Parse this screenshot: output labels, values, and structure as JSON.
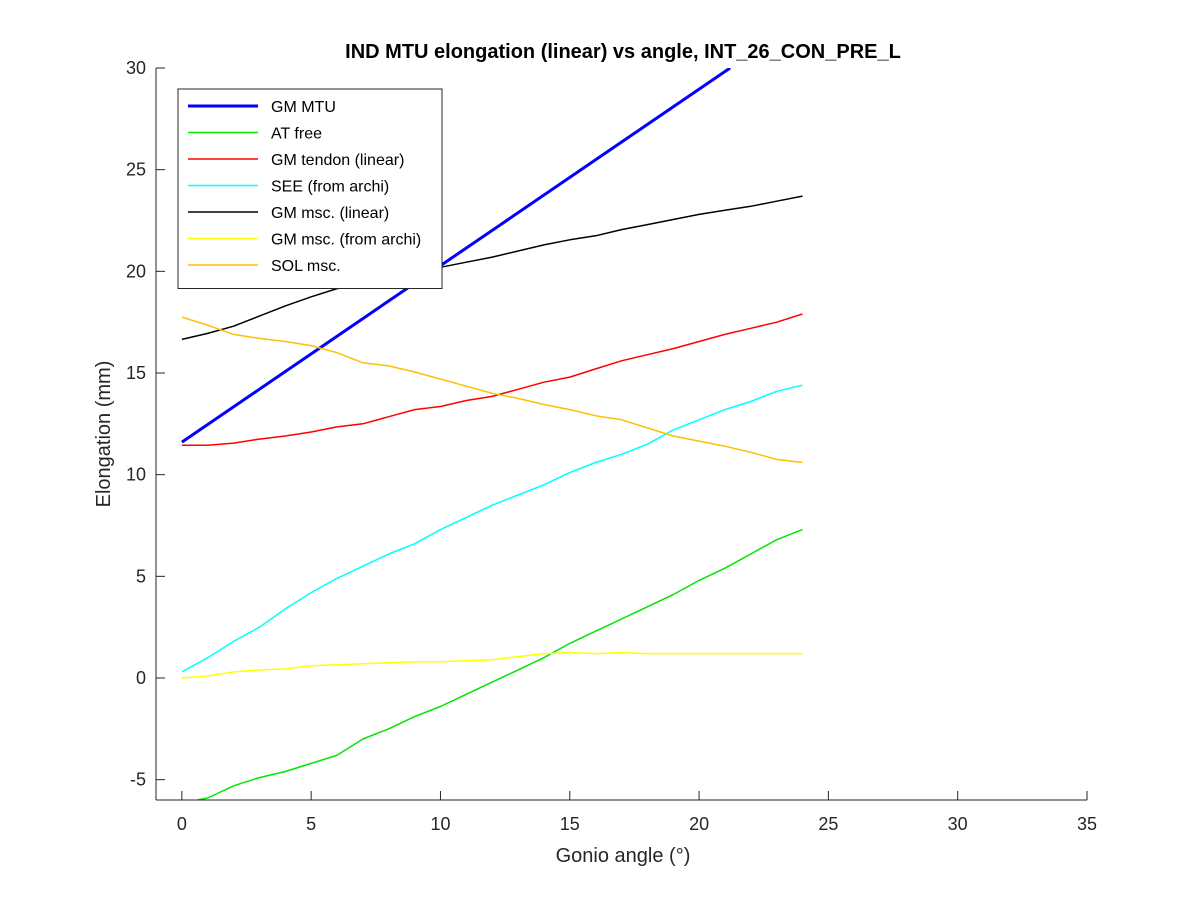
{
  "chart_data": {
    "type": "line",
    "title": "IND MTU elongation (linear) vs angle, INT_26_CON_PRE_L",
    "xlabel": "Gonio angle (°)",
    "ylabel": "Elongation (mm)",
    "xlim": [
      -1,
      35
    ],
    "ylim": [
      -6,
      30
    ],
    "xticks": [
      0,
      5,
      10,
      15,
      20,
      25,
      30,
      35
    ],
    "yticks": [
      -5,
      0,
      5,
      10,
      15,
      20,
      25,
      30
    ],
    "legend_position": "top-left",
    "grid": false,
    "series": [
      {
        "name": "GM MTU",
        "color": "#0000ff",
        "width": 3,
        "points": [
          [
            0,
            11.6
          ],
          [
            21.2,
            30.0
          ]
        ]
      },
      {
        "name": "AT free",
        "color": "#00e600",
        "width": 1.5,
        "points": [
          [
            0.6,
            -6.0
          ],
          [
            1.0,
            -5.9
          ],
          [
            2,
            -5.3
          ],
          [
            3,
            -4.9
          ],
          [
            4,
            -4.6
          ],
          [
            5,
            -4.2
          ],
          [
            6,
            -3.8
          ],
          [
            7,
            -3.0
          ],
          [
            8,
            -2.5
          ],
          [
            9,
            -1.9
          ],
          [
            10,
            -1.4
          ],
          [
            11,
            -0.8
          ],
          [
            12,
            -0.2
          ],
          [
            13,
            0.4
          ],
          [
            14,
            1.0
          ],
          [
            15,
            1.7
          ],
          [
            16,
            2.3
          ],
          [
            17,
            2.9
          ],
          [
            18,
            3.5
          ],
          [
            19,
            4.1
          ],
          [
            20,
            4.8
          ],
          [
            21,
            5.4
          ],
          [
            22,
            6.1
          ],
          [
            23,
            6.8
          ],
          [
            24,
            7.3
          ]
        ]
      },
      {
        "name": "GM tendon (linear)",
        "color": "#ff0000",
        "width": 1.5,
        "points": [
          [
            0,
            11.45
          ],
          [
            1,
            11.45
          ],
          [
            2,
            11.55
          ],
          [
            3,
            11.75
          ],
          [
            4,
            11.9
          ],
          [
            5,
            12.1
          ],
          [
            6,
            12.35
          ],
          [
            7,
            12.5
          ],
          [
            8,
            12.85
          ],
          [
            9,
            13.2
          ],
          [
            10,
            13.35
          ],
          [
            11,
            13.65
          ],
          [
            12,
            13.85
          ],
          [
            13,
            14.2
          ],
          [
            14,
            14.55
          ],
          [
            15,
            14.8
          ],
          [
            16,
            15.2
          ],
          [
            17,
            15.6
          ],
          [
            18,
            15.9
          ],
          [
            19,
            16.2
          ],
          [
            20,
            16.55
          ],
          [
            21,
            16.9
          ],
          [
            22,
            17.2
          ],
          [
            23,
            17.5
          ],
          [
            24,
            17.9
          ]
        ]
      },
      {
        "name": "SEE (from archi)",
        "color": "#00ffff",
        "width": 1.5,
        "points": [
          [
            0,
            0.3
          ],
          [
            1,
            1.0
          ],
          [
            2,
            1.8
          ],
          [
            3,
            2.5
          ],
          [
            4,
            3.4
          ],
          [
            5,
            4.2
          ],
          [
            6,
            4.9
          ],
          [
            7,
            5.5
          ],
          [
            8,
            6.1
          ],
          [
            9,
            6.6
          ],
          [
            10,
            7.3
          ],
          [
            11,
            7.9
          ],
          [
            12,
            8.5
          ],
          [
            13,
            9.0
          ],
          [
            14,
            9.5
          ],
          [
            15,
            10.1
          ],
          [
            16,
            10.6
          ],
          [
            17,
            11.0
          ],
          [
            18,
            11.5
          ],
          [
            19,
            12.2
          ],
          [
            20,
            12.7
          ],
          [
            21,
            13.2
          ],
          [
            22,
            13.6
          ],
          [
            23,
            14.1
          ],
          [
            24,
            14.4
          ]
        ]
      },
      {
        "name": "GM msc. (linear)",
        "color": "#000000",
        "width": 1.5,
        "points": [
          [
            0,
            16.65
          ],
          [
            1,
            16.95
          ],
          [
            2,
            17.3
          ],
          [
            3,
            17.8
          ],
          [
            4,
            18.3
          ],
          [
            5,
            18.75
          ],
          [
            6,
            19.15
          ],
          [
            7,
            19.35
          ],
          [
            8,
            19.7
          ],
          [
            9,
            19.95
          ],
          [
            10,
            20.2
          ],
          [
            11,
            20.45
          ],
          [
            12,
            20.7
          ],
          [
            13,
            21.0
          ],
          [
            14,
            21.3
          ],
          [
            15,
            21.55
          ],
          [
            16,
            21.75
          ],
          [
            17,
            22.05
          ],
          [
            18,
            22.3
          ],
          [
            19,
            22.55
          ],
          [
            20,
            22.8
          ],
          [
            21,
            23.0
          ],
          [
            22,
            23.2
          ],
          [
            23,
            23.45
          ],
          [
            24,
            23.7
          ]
        ]
      },
      {
        "name": "GM msc. (from archi)",
        "color": "#ffff00",
        "width": 1.5,
        "points": [
          [
            0,
            0.0
          ],
          [
            1,
            0.1
          ],
          [
            2,
            0.3
          ],
          [
            3,
            0.4
          ],
          [
            4,
            0.45
          ],
          [
            5,
            0.6
          ],
          [
            6,
            0.65
          ],
          [
            7,
            0.7
          ],
          [
            8,
            0.75
          ],
          [
            9,
            0.8
          ],
          [
            10,
            0.8
          ],
          [
            11,
            0.85
          ],
          [
            12,
            0.9
          ],
          [
            13,
            1.05
          ],
          [
            14,
            1.2
          ],
          [
            15,
            1.25
          ],
          [
            16,
            1.2
          ],
          [
            17,
            1.25
          ],
          [
            18,
            1.2
          ],
          [
            19,
            1.2
          ],
          [
            20,
            1.2
          ],
          [
            21,
            1.2
          ],
          [
            22,
            1.2
          ],
          [
            23,
            1.2
          ],
          [
            24,
            1.2
          ]
        ]
      },
      {
        "name": "SOL msc.",
        "color": "#ffbf00",
        "width": 1.5,
        "points": [
          [
            0,
            17.75
          ],
          [
            1,
            17.35
          ],
          [
            2,
            16.9
          ],
          [
            3,
            16.7
          ],
          [
            4,
            16.55
          ],
          [
            5,
            16.35
          ],
          [
            6,
            16.0
          ],
          [
            7,
            15.5
          ],
          [
            8,
            15.35
          ],
          [
            9,
            15.05
          ],
          [
            10,
            14.7
          ],
          [
            11,
            14.35
          ],
          [
            12,
            14.0
          ],
          [
            13,
            13.75
          ],
          [
            14,
            13.45
          ],
          [
            15,
            13.2
          ],
          [
            16,
            12.9
          ],
          [
            17,
            12.7
          ],
          [
            18,
            12.3
          ],
          [
            19,
            11.9
          ],
          [
            20,
            11.65
          ],
          [
            21,
            11.4
          ],
          [
            22,
            11.1
          ],
          [
            23,
            10.75
          ],
          [
            24,
            10.6
          ]
        ]
      }
    ]
  }
}
